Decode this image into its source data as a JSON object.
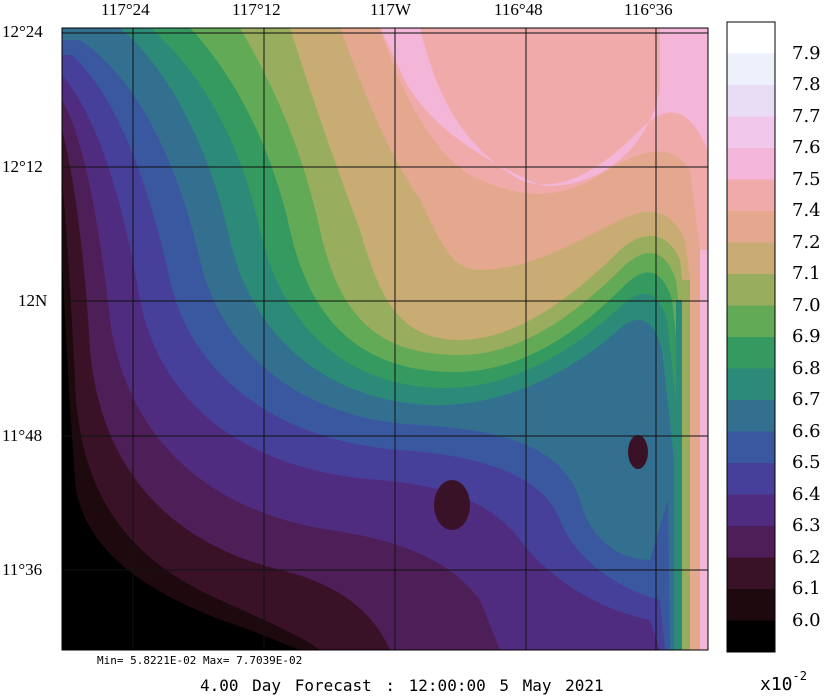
{
  "x_axis_labels": [
    "117°24",
    "117°12",
    "117W",
    "116°48",
    "116°36"
  ],
  "y_axis_labels": [
    "12°24",
    "12°12",
    "12N",
    "11°48",
    "11°36"
  ],
  "colorbar": {
    "levels": [
      "7.9",
      "7.8",
      "7.7",
      "7.6",
      "7.5",
      "7.4",
      "7.2",
      "7.1",
      "7.0",
      "6.9",
      "6.8",
      "6.7",
      "6.6",
      "6.5",
      "6.4",
      "6.3",
      "6.2",
      "6.1",
      "6.0"
    ],
    "colors": [
      "#ffffff",
      "#eef0fc",
      "#e9dcf5",
      "#f1c8ec",
      "#f3b5d8",
      "#f1aaaa",
      "#e3a88e",
      "#c8ac73",
      "#99ad5e",
      "#63aa57",
      "#349a5f",
      "#2c8a78",
      "#337090",
      "#3a58a0",
      "#46409a",
      "#502c80",
      "#4e1e58",
      "#3a1228",
      "#1e0a0e",
      "#000000"
    ],
    "scale_label": "x10",
    "scale_exponent": "-2"
  },
  "stats": "Min= 5.8221E-02  Max= 7.7039E-02",
  "caption": "4.00 Day Forecast : 12:00:00   5 May 2021"
}
